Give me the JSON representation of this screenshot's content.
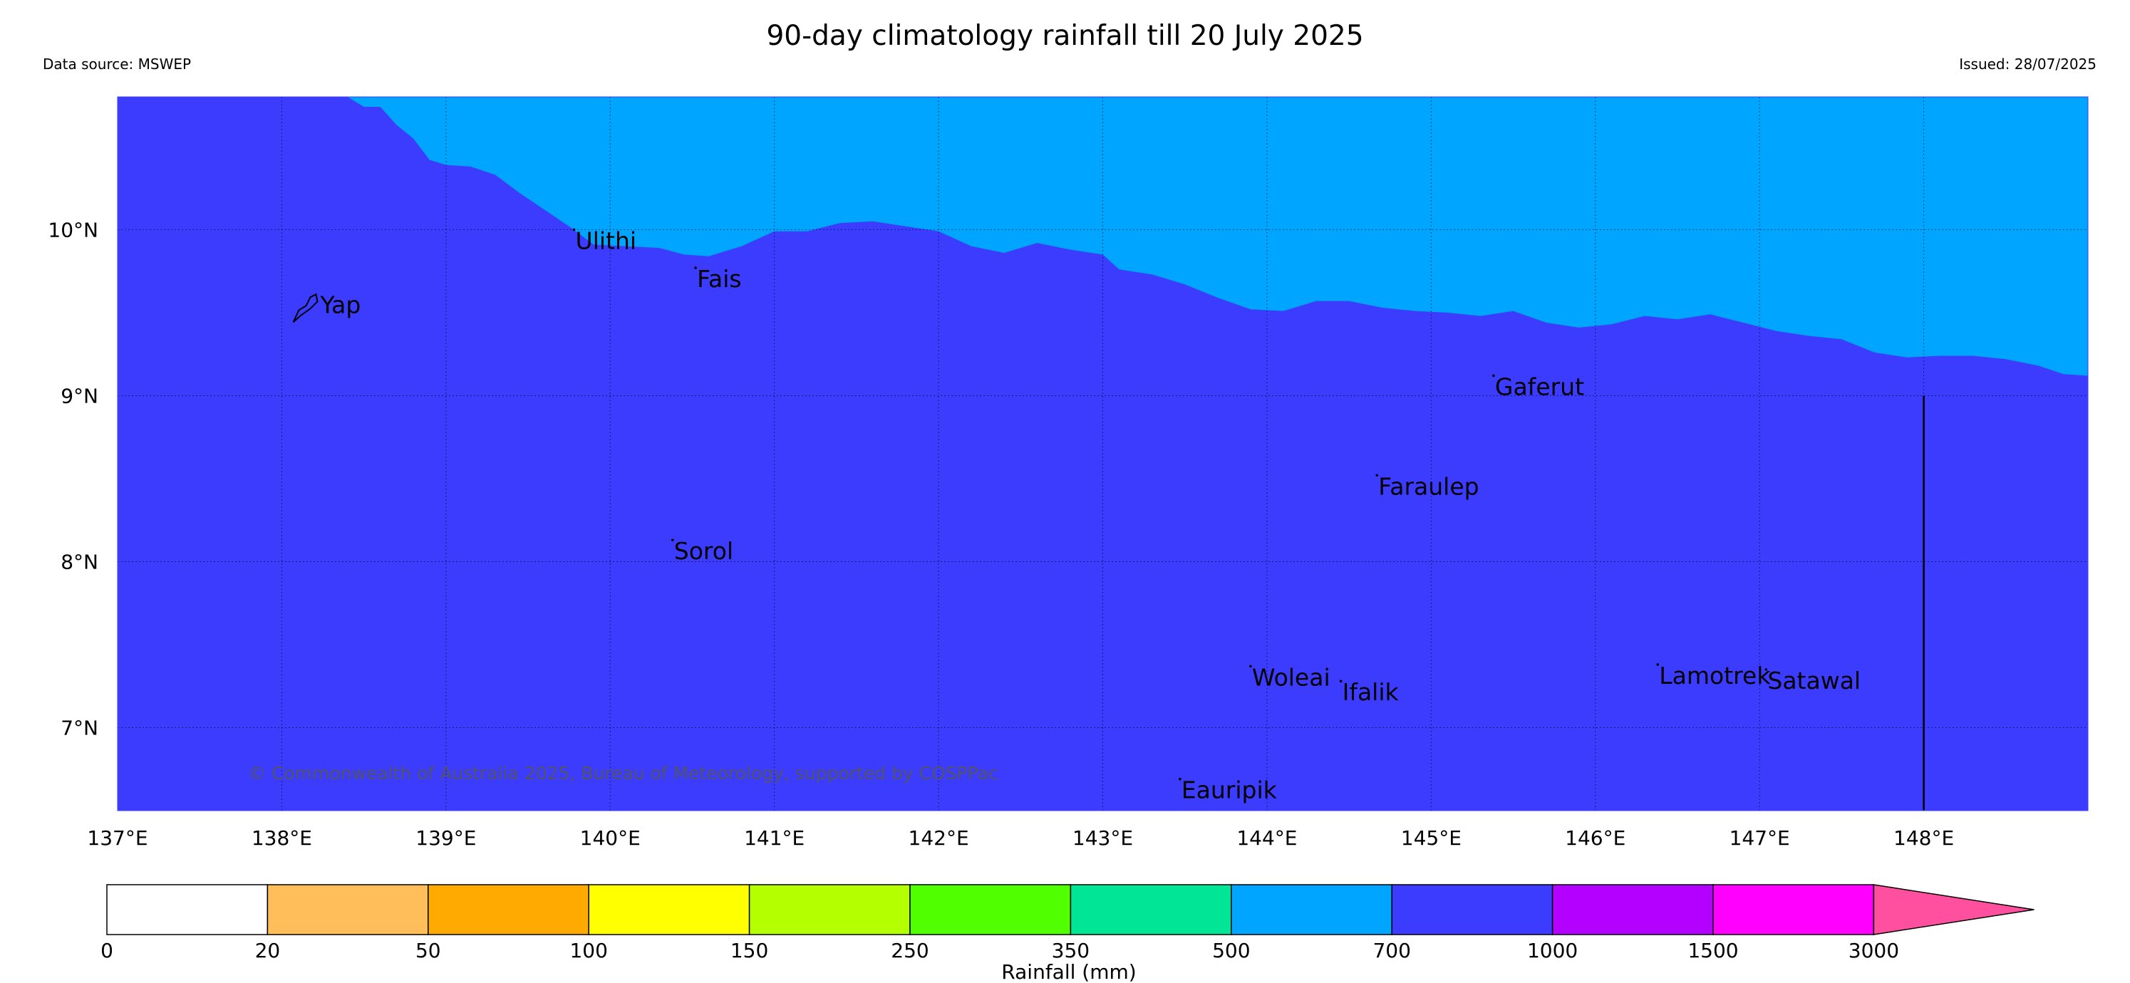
{
  "header": {
    "title": "90-day climatology rainfall till 20 July 2025",
    "data_source": "Data source: MSWEP",
    "issued": "Issued: 28/07/2025"
  },
  "map": {
    "lon_range": [
      137,
      149
    ],
    "lat_range": [
      6.5,
      10.8
    ],
    "lon_ticks": [
      {
        "value": 137,
        "label": "137°E"
      },
      {
        "value": 138,
        "label": "138°E"
      },
      {
        "value": 139,
        "label": "139°E"
      },
      {
        "value": 140,
        "label": "140°E"
      },
      {
        "value": 141,
        "label": "141°E"
      },
      {
        "value": 142,
        "label": "142°E"
      },
      {
        "value": 143,
        "label": "143°E"
      },
      {
        "value": 144,
        "label": "144°E"
      },
      {
        "value": 145,
        "label": "145°E"
      },
      {
        "value": 146,
        "label": "146°E"
      },
      {
        "value": 147,
        "label": "147°E"
      },
      {
        "value": 148,
        "label": "148°E"
      }
    ],
    "lat_ticks": [
      {
        "value": 10,
        "label": "10°N"
      },
      {
        "value": 9,
        "label": "9°N"
      },
      {
        "value": 8,
        "label": "8°N"
      },
      {
        "value": 7,
        "label": "7°N"
      }
    ],
    "grid": true,
    "colors": {
      "zone_low": "#00a5ff",
      "zone_high": "#3c3cff"
    },
    "boundary": [
      [
        138.4,
        10.8
      ],
      [
        138.5,
        10.74
      ],
      [
        138.6,
        10.74
      ],
      [
        138.7,
        10.63
      ],
      [
        138.8,
        10.55
      ],
      [
        138.9,
        10.42
      ],
      [
        139.0,
        10.39
      ],
      [
        139.15,
        10.38
      ],
      [
        139.3,
        10.33
      ],
      [
        139.45,
        10.22
      ],
      [
        139.6,
        10.12
      ],
      [
        139.75,
        10.02
      ],
      [
        139.9,
        9.91
      ],
      [
        140.1,
        9.9
      ],
      [
        140.3,
        9.89
      ],
      [
        140.45,
        9.85
      ],
      [
        140.6,
        9.84
      ],
      [
        140.8,
        9.9
      ],
      [
        141.0,
        9.99
      ],
      [
        141.2,
        9.99
      ],
      [
        141.4,
        10.04
      ],
      [
        141.6,
        10.05
      ],
      [
        141.8,
        10.02
      ],
      [
        142.0,
        9.99
      ],
      [
        142.2,
        9.9
      ],
      [
        142.4,
        9.86
      ],
      [
        142.6,
        9.92
      ],
      [
        142.8,
        9.88
      ],
      [
        143.0,
        9.85
      ],
      [
        143.1,
        9.76
      ],
      [
        143.3,
        9.73
      ],
      [
        143.5,
        9.67
      ],
      [
        143.7,
        9.59
      ],
      [
        143.9,
        9.52
      ],
      [
        144.1,
        9.51
      ],
      [
        144.3,
        9.57
      ],
      [
        144.5,
        9.57
      ],
      [
        144.7,
        9.53
      ],
      [
        144.9,
        9.51
      ],
      [
        145.1,
        9.5
      ],
      [
        145.3,
        9.48
      ],
      [
        145.5,
        9.51
      ],
      [
        145.7,
        9.44
      ],
      [
        145.9,
        9.41
      ],
      [
        146.1,
        9.43
      ],
      [
        146.3,
        9.48
      ],
      [
        146.5,
        9.46
      ],
      [
        146.7,
        9.49
      ],
      [
        146.9,
        9.44
      ],
      [
        147.1,
        9.39
      ],
      [
        147.3,
        9.36
      ],
      [
        147.5,
        9.34
      ],
      [
        147.7,
        9.26
      ],
      [
        147.9,
        9.23
      ],
      [
        148.1,
        9.24
      ],
      [
        148.3,
        9.24
      ],
      [
        148.5,
        9.22
      ],
      [
        148.7,
        9.18
      ],
      [
        148.85,
        9.13
      ],
      [
        149.0,
        9.12
      ]
    ],
    "islands": [
      {
        "name": "Yap",
        "lon": 138.2,
        "lat": 9.55,
        "type": "outline"
      },
      {
        "name": "Ulithi",
        "lon": 139.78,
        "lat": 10.0,
        "type": "dot"
      },
      {
        "name": "Fais",
        "lon": 140.52,
        "lat": 9.77,
        "type": "dot"
      },
      {
        "name": "Gaferut",
        "lon": 145.38,
        "lat": 9.12,
        "type": "dot"
      },
      {
        "name": "Faraulep",
        "lon": 144.67,
        "lat": 8.52,
        "type": "dot"
      },
      {
        "name": "Sorol",
        "lon": 140.38,
        "lat": 8.13,
        "type": "dot"
      },
      {
        "name": "Woleai",
        "lon": 143.9,
        "lat": 7.37,
        "type": "dot"
      },
      {
        "name": "Ifalik",
        "lon": 144.45,
        "lat": 7.28,
        "type": "dot"
      },
      {
        "name": "Lamotrek",
        "lon": 146.38,
        "lat": 7.38,
        "type": "dot"
      },
      {
        "name": "Satawal",
        "lon": 147.04,
        "lat": 7.35,
        "type": "dot"
      },
      {
        "name": "Eauripik",
        "lon": 143.47,
        "lat": 6.69,
        "type": "dot"
      }
    ],
    "meridian_line": {
      "lon": 148.0,
      "lat_from": 9.0,
      "lat_to": 6.5
    },
    "copyright": "© Commonwealth of Australia 2025, Bureau of Meteorology, supported by COSPPac"
  },
  "colorbar": {
    "label": "Rainfall (mm)",
    "bins": [
      {
        "color": "#ffffff"
      },
      {
        "color": "#ffbe5a"
      },
      {
        "color": "#ffaa00"
      },
      {
        "color": "#ffff00"
      },
      {
        "color": "#b4ff00"
      },
      {
        "color": "#50ff00"
      },
      {
        "color": "#00e696"
      },
      {
        "color": "#00a5ff"
      },
      {
        "color": "#3c3cff"
      },
      {
        "color": "#b400ff"
      },
      {
        "color": "#ff00ff"
      }
    ],
    "extend_color": "#ff50a0",
    "tick_labels": [
      "0",
      "20",
      "50",
      "100",
      "150",
      "250",
      "350",
      "500",
      "700",
      "1000",
      "1500",
      "3000"
    ]
  }
}
